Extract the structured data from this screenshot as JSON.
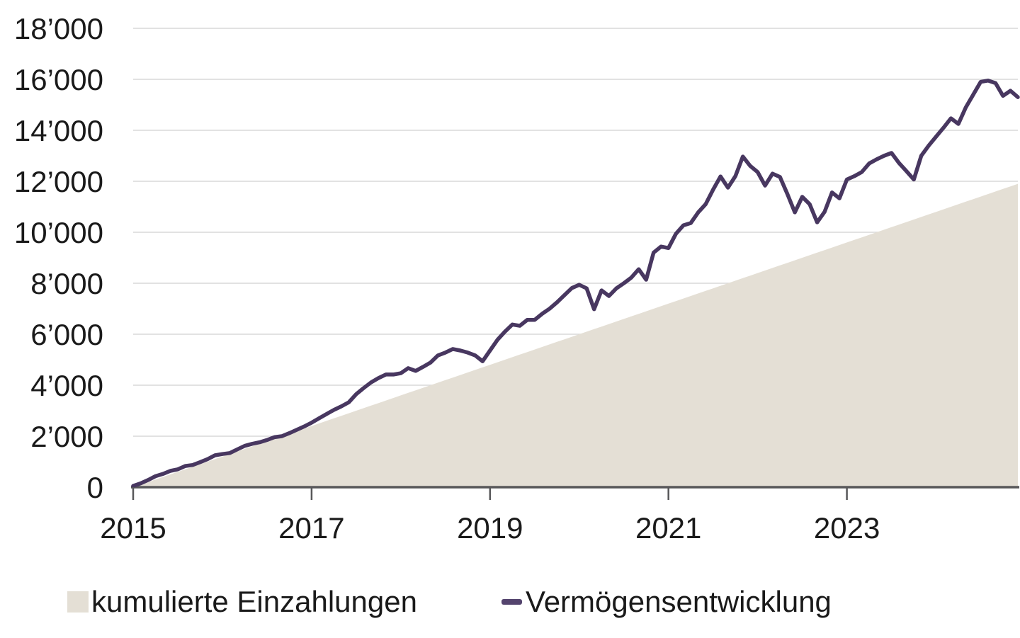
{
  "chart_data": {
    "type": "line",
    "title": "",
    "xlabel": "",
    "ylabel": "",
    "x": {
      "unit": "month",
      "start": "2015-01",
      "end": "2024-12",
      "tick_labels": [
        "2015",
        "2017",
        "2019",
        "2021",
        "2023"
      ],
      "tick_month_index": [
        0,
        24,
        48,
        72,
        96
      ]
    },
    "y": {
      "min": 0,
      "max": 18000,
      "tick_step": 2000,
      "tick_values": [
        0,
        2000,
        4000,
        6000,
        8000,
        10000,
        12000,
        14000,
        16000,
        18000
      ],
      "tick_labels": [
        "0",
        "2’000",
        "4’000",
        "6’000",
        "8’000",
        "10’000",
        "12’000",
        "14’000",
        "16’000",
        "18’000"
      ]
    },
    "grid": "horizontal-only",
    "legend_position": "bottom",
    "series": [
      {
        "name": "kumulierte Einzahlungen",
        "style": "area",
        "color": "#e4dfd5",
        "values": [
          0,
          100,
          200,
          300,
          400,
          500,
          600,
          700,
          800,
          900,
          1000,
          1100,
          1200,
          1300,
          1400,
          1500,
          1600,
          1700,
          1800,
          1900,
          2000,
          2100,
          2200,
          2300,
          2400,
          2500,
          2600,
          2700,
          2800,
          2900,
          3000,
          3100,
          3200,
          3300,
          3400,
          3500,
          3600,
          3700,
          3800,
          3900,
          4000,
          4100,
          4200,
          4300,
          4400,
          4500,
          4600,
          4700,
          4800,
          4900,
          5000,
          5100,
          5200,
          5300,
          5400,
          5500,
          5600,
          5700,
          5800,
          5900,
          6000,
          6100,
          6200,
          6300,
          6400,
          6500,
          6600,
          6700,
          6800,
          6900,
          7000,
          7100,
          7200,
          7300,
          7400,
          7500,
          7600,
          7700,
          7800,
          7900,
          8000,
          8100,
          8200,
          8300,
          8400,
          8500,
          8600,
          8700,
          8800,
          8900,
          9000,
          9100,
          9200,
          9300,
          9400,
          9500,
          9600,
          9700,
          9800,
          9900,
          10000,
          10100,
          10200,
          10300,
          10400,
          10500,
          10600,
          10700,
          10800,
          10900,
          11000,
          11100,
          11200,
          11300,
          11400,
          11500,
          11600,
          11700,
          11800,
          11900
        ]
      },
      {
        "name": "Vermögensentwicklung",
        "style": "line",
        "color": "#483760",
        "stroke_width": 5.5,
        "values": [
          50,
          150,
          280,
          430,
          520,
          640,
          700,
          830,
          870,
          980,
          1100,
          1250,
          1300,
          1340,
          1480,
          1620,
          1700,
          1760,
          1850,
          1960,
          2000,
          2120,
          2250,
          2380,
          2530,
          2700,
          2870,
          3030,
          3170,
          3330,
          3650,
          3890,
          4110,
          4280,
          4420,
          4420,
          4470,
          4670,
          4560,
          4720,
          4890,
          5170,
          5280,
          5420,
          5360,
          5280,
          5170,
          4940,
          5360,
          5780,
          6100,
          6380,
          6330,
          6560,
          6560,
          6800,
          7000,
          7250,
          7530,
          7810,
          7940,
          7800,
          6980,
          7720,
          7500,
          7800,
          8000,
          8220,
          8550,
          8140,
          9200,
          9440,
          9380,
          9940,
          10270,
          10360,
          10780,
          11100,
          11670,
          12190,
          11750,
          12200,
          12970,
          12600,
          12360,
          11830,
          12300,
          12170,
          11500,
          10780,
          11390,
          11100,
          10390,
          10800,
          11560,
          11330,
          12070,
          12200,
          12360,
          12700,
          12860,
          13000,
          13110,
          12720,
          12400,
          12070,
          13000,
          13400,
          13750,
          14100,
          14470,
          14250,
          14900,
          15400,
          15900,
          15950,
          15850,
          15350,
          15550,
          15300
        ]
      }
    ]
  },
  "legend": {
    "items": [
      {
        "label": "kumulierte Einzahlungen",
        "swatch": "area-square",
        "color": "#e4dfd5"
      },
      {
        "label": "Vermögensentwicklung",
        "swatch": "line-dash",
        "color": "#54446e"
      }
    ]
  },
  "colors": {
    "background": "#ffffff",
    "gridline": "#d8d8d8",
    "axis": "#58585a",
    "text": "#1a1a1a",
    "area_fill": "#e4dfd5",
    "line_stroke": "#483760"
  }
}
